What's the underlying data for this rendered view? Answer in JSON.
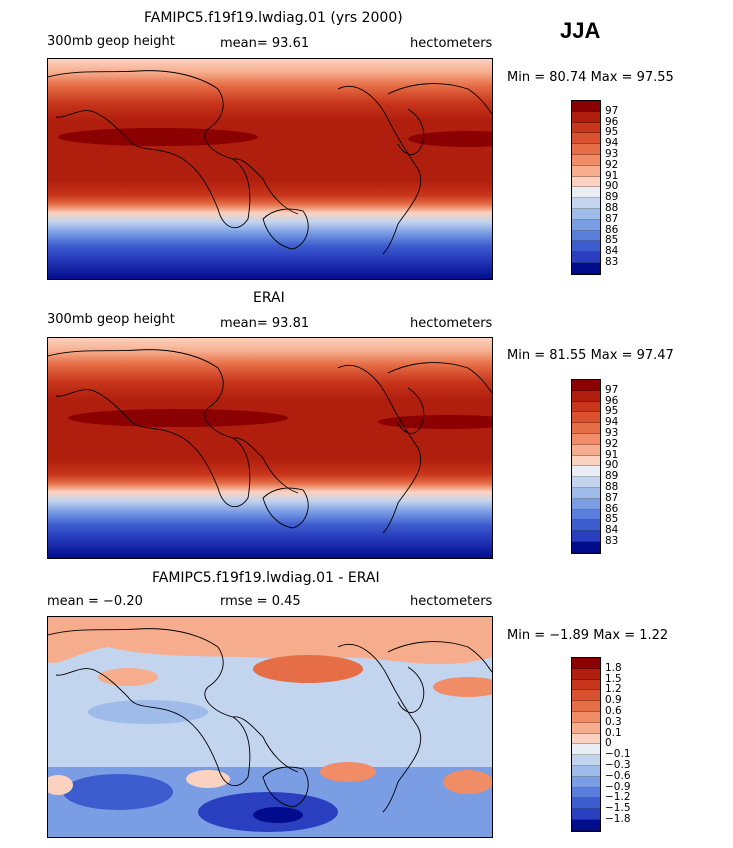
{
  "season": "JJA",
  "panels": [
    {
      "title": "FAMIPC5.f19f19.lwdiag.01 (yrs 2000)",
      "left_label": "300mb geop height",
      "center_label": "mean=   93.61",
      "right_label": "hectometers",
      "minmax": "Min =  80.74 Max =  97.55",
      "min": 80.74,
      "max": 97.55,
      "colorbar_labels": [
        "97",
        "96",
        "95",
        "94",
        "93",
        "92",
        "91",
        "90",
        "89",
        "88",
        "87",
        "86",
        "85",
        "84",
        "83"
      ],
      "colorbar_colors": [
        "#8b0000",
        "#b01e0e",
        "#c8361c",
        "#d9512e",
        "#e66e46",
        "#f08c66",
        "#f6ad8e",
        "#fbd2bf",
        "#e9eef6",
        "#c3d4ee",
        "#9fbbea",
        "#7a9de4",
        "#5a7edb",
        "#3d5dcf",
        "#2a3fbf",
        "#000c8c"
      ]
    },
    {
      "title": "ERAI",
      "left_label": "300mb geop height",
      "center_label": "mean=   93.81",
      "right_label": "hectometers",
      "minmax": "Min =  81.55 Max =  97.47",
      "min": 81.55,
      "max": 97.47,
      "colorbar_labels": [
        "97",
        "96",
        "95",
        "94",
        "93",
        "92",
        "91",
        "90",
        "89",
        "88",
        "87",
        "86",
        "85",
        "84",
        "83"
      ],
      "colorbar_colors": [
        "#8b0000",
        "#b01e0e",
        "#c8361c",
        "#d9512e",
        "#e66e46",
        "#f08c66",
        "#f6ad8e",
        "#fbd2bf",
        "#e9eef6",
        "#c3d4ee",
        "#9fbbea",
        "#7a9de4",
        "#5a7edb",
        "#3d5dcf",
        "#2a3fbf",
        "#000c8c"
      ]
    },
    {
      "title": "FAMIPC5.f19f19.lwdiag.01 - ERAI",
      "left_label": "mean =   −0.20",
      "center_label": "rmse =    0.45",
      "right_label": "hectometers",
      "minmax": "Min =  −1.89 Max =   1.22",
      "min": -1.89,
      "max": 1.22,
      "colorbar_labels": [
        "1.8",
        "1.5",
        "1.2",
        "0.9",
        "0.6",
        "0.3",
        "0.1",
        "0",
        "−0.1",
        "−0.3",
        "−0.6",
        "−0.9",
        "−1.2",
        "−1.5",
        "−1.8"
      ],
      "colorbar_colors": [
        "#8b0000",
        "#b01e0e",
        "#c8361c",
        "#d9512e",
        "#e66e46",
        "#f08c66",
        "#f6ad8e",
        "#fbd2bf",
        "#e9eef6",
        "#c3d4ee",
        "#9fbbea",
        "#7a9de4",
        "#5a7edb",
        "#3d5dcf",
        "#2a3fbf",
        "#000c8c"
      ]
    }
  ]
}
